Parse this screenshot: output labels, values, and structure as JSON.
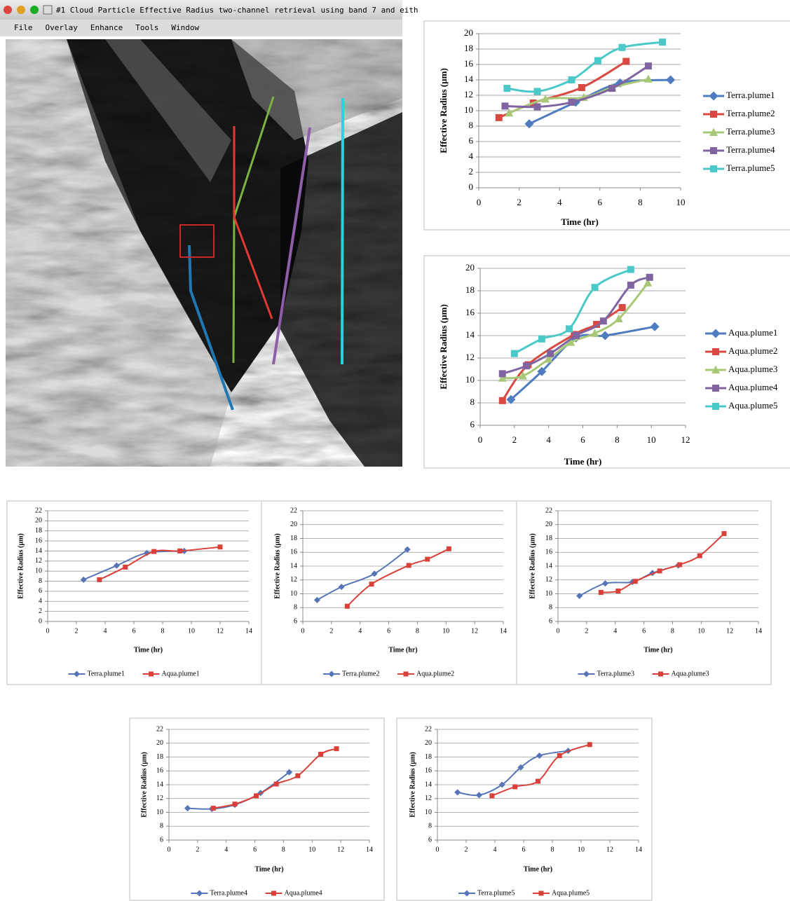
{
  "window": {
    "title": "#1 Cloud Particle Effective Radius two-channel retrieval using band 7 and eith",
    "menu": [
      "File",
      "Overlay",
      "Enhance",
      "Tools",
      "Window"
    ]
  },
  "chart_data": [
    {
      "type": "line",
      "x_label": "Time (hr)",
      "y_label": "Effective Radius (µm)",
      "xlim": [
        0,
        10
      ],
      "xticks": [
        0,
        2,
        4,
        6,
        8,
        10
      ],
      "ylim": [
        0,
        20
      ],
      "yticks": [
        0,
        2,
        4,
        6,
        8,
        10,
        12,
        14,
        16,
        18,
        20
      ],
      "grid": true,
      "legend": "right",
      "series": [
        {
          "name": "Terra.plume1",
          "color": "#4f7bc1",
          "marker": "diamond",
          "x": [
            2.5,
            4.8,
            7.0,
            9.5
          ],
          "values": [
            8.3,
            11.1,
            13.6,
            14.0
          ]
        },
        {
          "name": "Terra.plume2",
          "color": "#d84a41",
          "marker": "square",
          "x": [
            1.0,
            2.7,
            5.1,
            7.3
          ],
          "values": [
            9.1,
            11.0,
            13.0,
            16.4
          ]
        },
        {
          "name": "Terra.plume3",
          "color": "#a8c878",
          "marker": "triangle",
          "x": [
            1.5,
            3.3,
            5.2,
            6.6,
            8.4
          ],
          "values": [
            9.7,
            11.5,
            11.7,
            13.0,
            14.1
          ]
        },
        {
          "name": "Terra.plume4",
          "color": "#8064a2",
          "marker": "square",
          "x": [
            1.3,
            2.9,
            4.6,
            6.6,
            8.4
          ],
          "values": [
            10.6,
            10.5,
            11.1,
            12.9,
            15.8
          ]
        },
        {
          "name": "Terra.plume5",
          "color": "#4bc8c8",
          "marker": "square",
          "x": [
            1.4,
            2.9,
            4.6,
            5.9,
            7.1,
            9.1
          ],
          "values": [
            12.9,
            12.5,
            14.0,
            16.5,
            18.2,
            18.9
          ]
        }
      ]
    },
    {
      "type": "line",
      "x_label": "Time (hr)",
      "y_label": "Effective Radius (µm)",
      "xlim": [
        0,
        12
      ],
      "xticks": [
        0,
        2,
        4,
        6,
        8,
        10,
        12
      ],
      "ylim": [
        6,
        20
      ],
      "yticks": [
        6,
        8,
        10,
        12,
        14,
        16,
        18,
        20
      ],
      "grid": true,
      "legend": "right",
      "series": [
        {
          "name": "Aqua.plume1",
          "color": "#4f7bc1",
          "marker": "diamond",
          "x": [
            1.8,
            3.6,
            5.6,
            7.3,
            10.2
          ],
          "values": [
            8.3,
            10.8,
            13.8,
            14.0,
            14.8
          ]
        },
        {
          "name": "Aqua.plume2",
          "color": "#d84a41",
          "marker": "square",
          "x": [
            1.3,
            2.8,
            5.5,
            6.8,
            8.3
          ],
          "values": [
            8.2,
            11.4,
            14.1,
            15.0,
            16.5
          ]
        },
        {
          "name": "Aqua.plume3",
          "color": "#a8c878",
          "marker": "triangle",
          "x": [
            1.3,
            2.5,
            4.0,
            5.3,
            6.7,
            8.1,
            9.8
          ],
          "values": [
            10.2,
            10.4,
            11.9,
            13.4,
            14.2,
            15.5,
            18.7
          ]
        },
        {
          "name": "Aqua.plume4",
          "color": "#8064a2",
          "marker": "square",
          "x": [
            1.3,
            2.7,
            4.1,
            5.6,
            7.2,
            8.8,
            9.9
          ],
          "values": [
            10.6,
            11.3,
            12.4,
            14.0,
            15.3,
            18.5,
            19.2
          ]
        },
        {
          "name": "Aqua.plume5",
          "color": "#4bc8c8",
          "marker": "square",
          "x": [
            2.0,
            3.6,
            5.2,
            6.7,
            8.8
          ],
          "values": [
            12.4,
            13.7,
            14.6,
            18.3,
            19.9
          ]
        }
      ]
    },
    {
      "type": "line",
      "x_label": "Time (hr)",
      "y_label": "Effective Radius (µm)",
      "xlim": [
        0,
        14
      ],
      "xticks": [
        0,
        2,
        4,
        6,
        8,
        10,
        12,
        14
      ],
      "ylim": [
        0,
        22
      ],
      "yticks": [
        0,
        2,
        4,
        6,
        8,
        10,
        12,
        14,
        16,
        18,
        20,
        22
      ],
      "grid": true,
      "legend": "bottom",
      "series": [
        {
          "name": "Terra.plume1",
          "color": "#5575b8",
          "marker": "diamond",
          "x": [
            2.5,
            4.8,
            6.9,
            9.5
          ],
          "values": [
            8.3,
            11.1,
            13.6,
            14.0
          ]
        },
        {
          "name": "Aqua.plume1",
          "color": "#d9403a",
          "marker": "square",
          "x": [
            3.6,
            5.4,
            7.4,
            9.2,
            12.0
          ],
          "values": [
            8.3,
            10.8,
            13.9,
            14.0,
            14.8
          ]
        }
      ]
    },
    {
      "type": "line",
      "x_label": "Time (hr)",
      "y_label": "Effective Radius (µm)",
      "xlim": [
        0,
        14
      ],
      "xticks": [
        0,
        2,
        4,
        6,
        8,
        10,
        12,
        14
      ],
      "ylim": [
        6,
        22
      ],
      "yticks": [
        6,
        8,
        10,
        12,
        14,
        16,
        18,
        20,
        22
      ],
      "grid": true,
      "legend": "bottom",
      "series": [
        {
          "name": "Terra.plume2",
          "color": "#5575b8",
          "marker": "diamond",
          "x": [
            1.0,
            2.7,
            5.0,
            7.3
          ],
          "values": [
            9.1,
            11.0,
            12.9,
            16.4
          ]
        },
        {
          "name": "Aqua.plume2",
          "color": "#d9403a",
          "marker": "square",
          "x": [
            3.1,
            4.8,
            7.4,
            8.7,
            10.2
          ],
          "values": [
            8.2,
            11.4,
            14.1,
            15.0,
            16.5
          ]
        }
      ]
    },
    {
      "type": "line",
      "x_label": "Time (hr)",
      "y_label": "Effective Radius (µm)",
      "xlim": [
        0,
        14
      ],
      "xticks": [
        0,
        2,
        4,
        6,
        8,
        10,
        12,
        14
      ],
      "ylim": [
        6,
        22
      ],
      "yticks": [
        6,
        8,
        10,
        12,
        14,
        16,
        18,
        20,
        22
      ],
      "grid": true,
      "legend": "bottom",
      "series": [
        {
          "name": "Terra.plume3",
          "color": "#5575b8",
          "marker": "diamond",
          "x": [
            1.5,
            3.3,
            5.2,
            6.6,
            8.4
          ],
          "values": [
            9.7,
            11.5,
            11.7,
            13.0,
            14.1
          ]
        },
        {
          "name": "Aqua.plume3",
          "color": "#d9403a",
          "marker": "square",
          "x": [
            3.0,
            4.2,
            5.4,
            7.1,
            8.5,
            9.9,
            11.6
          ],
          "values": [
            10.2,
            10.4,
            11.8,
            13.3,
            14.2,
            15.5,
            18.7
          ]
        }
      ]
    },
    {
      "type": "line",
      "x_label": "Time (hr)",
      "y_label": "Effective Radius (µm)",
      "xlim": [
        0,
        14
      ],
      "xticks": [
        0,
        2,
        4,
        6,
        8,
        10,
        12,
        14
      ],
      "ylim": [
        6,
        22
      ],
      "yticks": [
        6,
        8,
        10,
        12,
        14,
        16,
        18,
        20,
        22
      ],
      "grid": true,
      "legend": "bottom",
      "series": [
        {
          "name": "Terra.plume4",
          "color": "#5575b8",
          "marker": "diamond",
          "x": [
            1.3,
            3.0,
            4.6,
            6.4,
            8.4
          ],
          "values": [
            10.6,
            10.5,
            11.1,
            12.8,
            15.8
          ]
        },
        {
          "name": "Aqua.plume4",
          "color": "#d9403a",
          "marker": "square",
          "x": [
            3.1,
            4.6,
            6.1,
            7.5,
            9.0,
            10.6,
            11.7
          ],
          "values": [
            10.6,
            11.2,
            12.4,
            14.1,
            15.3,
            18.4,
            19.2
          ]
        }
      ]
    },
    {
      "type": "line",
      "x_label": "Time (hr)",
      "y_label": "Effective Radius (µm)",
      "xlim": [
        0,
        14
      ],
      "xticks": [
        0,
        2,
        4,
        6,
        8,
        10,
        12,
        14
      ],
      "ylim": [
        6,
        22
      ],
      "yticks": [
        6,
        8,
        10,
        12,
        14,
        16,
        18,
        20,
        22
      ],
      "grid": true,
      "legend": "bottom",
      "series": [
        {
          "name": "Terra.plume5",
          "color": "#5575b8",
          "marker": "diamond",
          "x": [
            1.4,
            2.9,
            4.5,
            5.8,
            7.1,
            9.1
          ],
          "values": [
            12.9,
            12.5,
            14.0,
            16.5,
            18.2,
            18.9
          ]
        },
        {
          "name": "Aqua.plume5",
          "color": "#d9403a",
          "marker": "square",
          "x": [
            3.8,
            5.4,
            7.0,
            8.5,
            10.6
          ],
          "values": [
            12.4,
            13.7,
            14.5,
            18.2,
            19.8
          ]
        }
      ]
    }
  ]
}
